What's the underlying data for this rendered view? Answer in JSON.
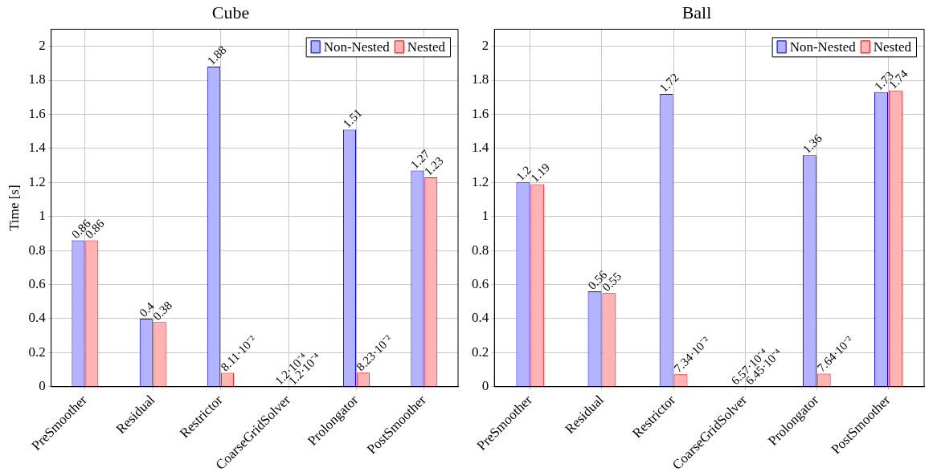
{
  "chart_data": [
    {
      "type": "bar",
      "title": "Cube",
      "ylabel": "Time [s]",
      "categories": [
        "PreSmoother",
        "Residual",
        "Restrictor",
        "CoarseGridSolver",
        "Prolongator",
        "PostSmoother"
      ],
      "series": [
        {
          "name": "Non-Nested",
          "color": "#b3b3ff",
          "values": [
            0.86,
            0.4,
            1.88,
            0.00012,
            1.51,
            1.27
          ],
          "value_labels": [
            "0.86",
            "0.4",
            "1.88",
            "1.2·10⁻⁴",
            "1.51",
            "1.27"
          ]
        },
        {
          "name": "Nested",
          "color": "#ffb3b3",
          "values": [
            0.86,
            0.38,
            0.0811,
            0.00012,
            0.0823,
            1.23
          ],
          "value_labels": [
            "0.86",
            "0.38",
            "8.11·10⁻²",
            "1.2·10⁻⁴",
            "8.23·10⁻²",
            "1.23"
          ]
        }
      ],
      "ylim": [
        0,
        2.1
      ],
      "yticks": [
        0,
        0.2,
        0.4,
        0.6,
        0.8,
        1,
        1.2,
        1.4,
        1.6,
        1.8,
        2
      ],
      "grid": true,
      "legend": "top right"
    },
    {
      "type": "bar",
      "title": "Ball",
      "categories": [
        "PreSmoother",
        "Residual",
        "Restrictor",
        "CoarseGridSolver",
        "Prolongator",
        "PostSmoother"
      ],
      "series": [
        {
          "name": "Non-Nested",
          "color": "#b3b3ff",
          "values": [
            1.2,
            0.56,
            1.72,
            0.000657,
            1.36,
            1.73
          ],
          "value_labels": [
            "1.2",
            "0.56",
            "1.72",
            "6.57·10⁻⁴",
            "1.36",
            "1.73"
          ]
        },
        {
          "name": "Nested",
          "color": "#ffb3b3",
          "values": [
            1.19,
            0.55,
            0.0734,
            0.000645,
            0.0764,
            1.74
          ],
          "value_labels": [
            "1.19",
            "0.55",
            "7.34·10⁻²",
            "6.45·10⁻⁴",
            "7.64·10⁻²",
            "1.74"
          ]
        }
      ],
      "ylim": [
        0,
        2.1
      ],
      "yticks": [
        0,
        0.2,
        0.4,
        0.6,
        0.8,
        1,
        1.2,
        1.4,
        1.6,
        1.8,
        2
      ],
      "grid": true,
      "legend": "top right"
    }
  ]
}
